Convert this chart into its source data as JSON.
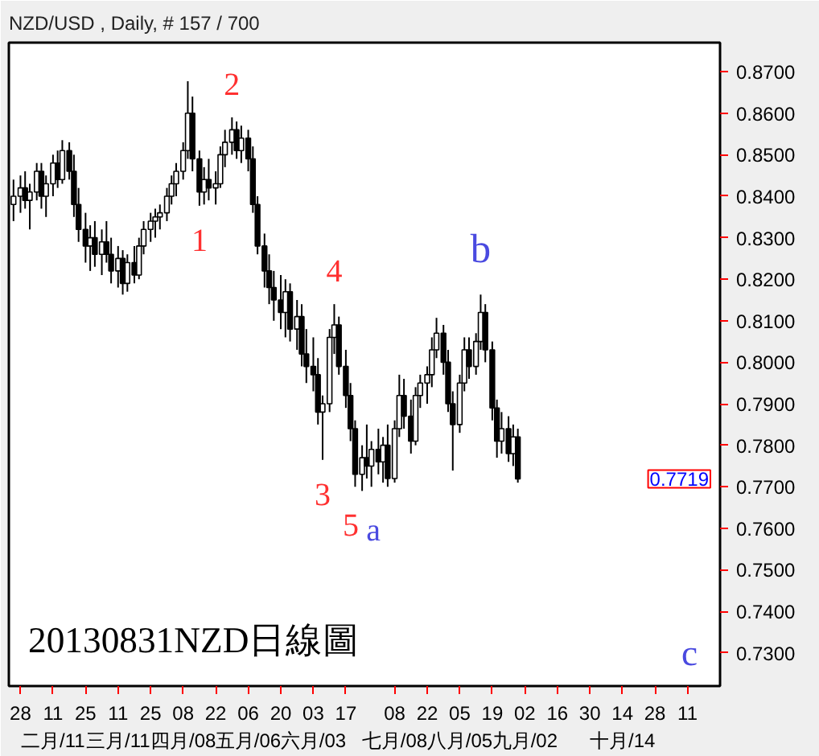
{
  "chart_data": {
    "type": "candlestick",
    "title": "NZD/USD , Daily, # 157 / 700",
    "color": "#000000",
    "x": [
      "2013-01-25",
      "2013-01-28",
      "2013-01-30",
      "2013-02-01",
      "2013-02-04",
      "2013-02-06",
      "2013-02-08",
      "2013-02-11",
      "2013-02-13",
      "2013-02-15",
      "2013-02-18",
      "2013-02-20",
      "2013-02-22",
      "2013-02-25",
      "2013-02-27",
      "2013-03-01",
      "2013-03-04",
      "2013-03-06",
      "2013-03-08",
      "2013-03-11",
      "2013-03-13",
      "2013-03-15",
      "2013-03-18",
      "2013-03-20",
      "2013-03-22",
      "2013-03-25",
      "2013-03-27",
      "2013-03-29",
      "2013-04-01",
      "2013-04-03",
      "2013-04-05",
      "2013-04-08",
      "2013-04-10",
      "2013-04-12",
      "2013-04-15",
      "2013-04-17",
      "2013-04-19",
      "2013-04-22",
      "2013-04-24",
      "2013-04-26",
      "2013-04-29",
      "2013-05-01",
      "2013-05-03",
      "2013-05-06",
      "2013-05-08",
      "2013-05-10",
      "2013-05-13",
      "2013-05-15",
      "2013-05-17",
      "2013-05-20",
      "2013-05-22",
      "2013-05-24",
      "2013-05-27",
      "2013-05-29",
      "2013-05-31",
      "2013-06-03",
      "2013-06-05",
      "2013-06-07",
      "2013-06-10",
      "2013-06-12",
      "2013-06-14",
      "2013-06-17",
      "2013-06-19",
      "2013-06-21",
      "2013-06-24",
      "2013-06-26",
      "2013-06-28",
      "2013-07-01",
      "2013-07-03",
      "2013-07-05",
      "2013-07-08",
      "2013-07-10",
      "2013-07-12",
      "2013-07-15",
      "2013-07-17",
      "2013-07-19",
      "2013-07-22",
      "2013-07-24",
      "2013-07-26",
      "2013-07-29",
      "2013-07-31",
      "2013-08-02",
      "2013-08-05",
      "2013-08-07",
      "2013-08-09",
      "2013-08-12",
      "2013-08-14",
      "2013-08-16",
      "2013-08-19",
      "2013-08-21",
      "2013-08-23",
      "2013-08-26",
      "2013-08-28",
      "2013-08-30"
    ],
    "ohlc": [
      [
        0.838,
        0.844,
        0.834,
        0.84
      ],
      [
        0.84,
        0.845,
        0.836,
        0.842
      ],
      [
        0.842,
        0.846,
        0.837,
        0.839
      ],
      [
        0.839,
        0.843,
        0.832,
        0.841
      ],
      [
        0.841,
        0.848,
        0.839,
        0.846
      ],
      [
        0.846,
        0.848,
        0.837,
        0.84
      ],
      [
        0.84,
        0.845,
        0.835,
        0.843
      ],
      [
        0.843,
        0.85,
        0.84,
        0.848
      ],
      [
        0.848,
        0.851,
        0.842,
        0.844
      ],
      [
        0.844,
        0.8535,
        0.843,
        0.851
      ],
      [
        0.851,
        0.853,
        0.844,
        0.846
      ],
      [
        0.846,
        0.85,
        0.835,
        0.838
      ],
      [
        0.838,
        0.842,
        0.829,
        0.832
      ],
      [
        0.832,
        0.836,
        0.824,
        0.828
      ],
      [
        0.828,
        0.833,
        0.822,
        0.83
      ],
      [
        0.83,
        0.834,
        0.823,
        0.826
      ],
      [
        0.826,
        0.832,
        0.821,
        0.829
      ],
      [
        0.829,
        0.834,
        0.824,
        0.826
      ],
      [
        0.826,
        0.83,
        0.819,
        0.822
      ],
      [
        0.822,
        0.828,
        0.818,
        0.825
      ],
      [
        0.825,
        0.827,
        0.8163,
        0.819
      ],
      [
        0.819,
        0.826,
        0.817,
        0.824
      ],
      [
        0.824,
        0.828,
        0.819,
        0.821
      ],
      [
        0.821,
        0.83,
        0.82,
        0.828
      ],
      [
        0.828,
        0.834,
        0.826,
        0.832
      ],
      [
        0.832,
        0.836,
        0.829,
        0.834
      ],
      [
        0.834,
        0.837,
        0.83,
        0.835
      ],
      [
        0.835,
        0.838,
        0.832,
        0.836
      ],
      [
        0.836,
        0.842,
        0.834,
        0.84
      ],
      [
        0.84,
        0.845,
        0.838,
        0.843
      ],
      [
        0.843,
        0.848,
        0.84,
        0.846
      ],
      [
        0.846,
        0.853,
        0.844,
        0.851
      ],
      [
        0.851,
        0.8677,
        0.849,
        0.86
      ],
      [
        0.86,
        0.864,
        0.846,
        0.849
      ],
      [
        0.849,
        0.851,
        0.8377,
        0.841
      ],
      [
        0.841,
        0.847,
        0.838,
        0.844
      ],
      [
        0.844,
        0.849,
        0.839,
        0.842
      ],
      [
        0.842,
        0.846,
        0.838,
        0.843
      ],
      [
        0.843,
        0.852,
        0.842,
        0.85
      ],
      [
        0.85,
        0.856,
        0.847,
        0.853
      ],
      [
        0.853,
        0.859,
        0.85,
        0.856
      ],
      [
        0.856,
        0.858,
        0.849,
        0.851
      ],
      [
        0.851,
        0.857,
        0.848,
        0.854
      ],
      [
        0.854,
        0.856,
        0.846,
        0.849
      ],
      [
        0.849,
        0.852,
        0.836,
        0.838
      ],
      [
        0.838,
        0.84,
        0.826,
        0.828
      ],
      [
        0.828,
        0.831,
        0.818,
        0.822
      ],
      [
        0.822,
        0.826,
        0.814,
        0.818
      ],
      [
        0.818,
        0.822,
        0.81,
        0.815
      ],
      [
        0.815,
        0.821,
        0.808,
        0.812
      ],
      [
        0.812,
        0.82,
        0.806,
        0.817
      ],
      [
        0.817,
        0.819,
        0.805,
        0.808
      ],
      [
        0.808,
        0.815,
        0.803,
        0.811
      ],
      [
        0.811,
        0.814,
        0.799,
        0.802
      ],
      [
        0.802,
        0.808,
        0.795,
        0.799
      ],
      [
        0.799,
        0.806,
        0.793,
        0.797
      ],
      [
        0.797,
        0.801,
        0.785,
        0.788
      ],
      [
        0.788,
        0.792,
        0.7765,
        0.79
      ],
      [
        0.79,
        0.808,
        0.788,
        0.806
      ],
      [
        0.806,
        0.814,
        0.802,
        0.809
      ],
      [
        0.809,
        0.811,
        0.797,
        0.799
      ],
      [
        0.799,
        0.803,
        0.789,
        0.792
      ],
      [
        0.792,
        0.795,
        0.781,
        0.784
      ],
      [
        0.784,
        0.786,
        0.77,
        0.773
      ],
      [
        0.773,
        0.78,
        0.769,
        0.777
      ],
      [
        0.777,
        0.785,
        0.772,
        0.775
      ],
      [
        0.775,
        0.781,
        0.77,
        0.779
      ],
      [
        0.779,
        0.784,
        0.773,
        0.776
      ],
      [
        0.776,
        0.782,
        0.771,
        0.78
      ],
      [
        0.78,
        0.785,
        0.77,
        0.772
      ],
      [
        0.772,
        0.786,
        0.771,
        0.784
      ],
      [
        0.784,
        0.797,
        0.782,
        0.792
      ],
      [
        0.792,
        0.796,
        0.784,
        0.787
      ],
      [
        0.787,
        0.791,
        0.778,
        0.781
      ],
      [
        0.781,
        0.794,
        0.78,
        0.792
      ],
      [
        0.792,
        0.797,
        0.789,
        0.795
      ],
      [
        0.795,
        0.799,
        0.79,
        0.797
      ],
      [
        0.797,
        0.806,
        0.794,
        0.803
      ],
      [
        0.803,
        0.8107,
        0.801,
        0.807
      ],
      [
        0.807,
        0.809,
        0.797,
        0.8
      ],
      [
        0.8,
        0.803,
        0.788,
        0.79
      ],
      [
        0.79,
        0.793,
        0.7739,
        0.785
      ],
      [
        0.785,
        0.797,
        0.783,
        0.795
      ],
      [
        0.795,
        0.806,
        0.793,
        0.803
      ],
      [
        0.803,
        0.806,
        0.796,
        0.799
      ],
      [
        0.799,
        0.807,
        0.797,
        0.805
      ],
      [
        0.805,
        0.8163,
        0.803,
        0.812
      ],
      [
        0.812,
        0.814,
        0.8,
        0.803
      ],
      [
        0.803,
        0.805,
        0.786,
        0.789
      ],
      [
        0.789,
        0.791,
        0.777,
        0.781
      ],
      [
        0.781,
        0.788,
        0.778,
        0.784
      ],
      [
        0.784,
        0.787,
        0.776,
        0.778
      ],
      [
        0.778,
        0.785,
        0.775,
        0.782
      ],
      [
        0.782,
        0.784,
        0.771,
        0.7719
      ]
    ],
    "xlim": [
      "2013-01-23",
      "2013-11-25"
    ],
    "xticks": [
      {
        "value": "2013-01-28",
        "label": "28"
      },
      {
        "value": "2013-02-11",
        "label": "11\n二月/11"
      },
      {
        "value": "2013-02-25",
        "label": "25"
      },
      {
        "value": "2013-03-11",
        "label": "11\n三月/11"
      },
      {
        "value": "2013-03-25",
        "label": "25"
      },
      {
        "value": "2013-04-08",
        "label": "08\n四月/08"
      },
      {
        "value": "2013-04-22",
        "label": "22"
      },
      {
        "value": "2013-05-06",
        "label": "06\n五月/06"
      },
      {
        "value": "2013-05-20",
        "label": "20"
      },
      {
        "value": "2013-06-03",
        "label": "03\n六月/03"
      },
      {
        "value": "2013-06-17",
        "label": "17"
      },
      {
        "value": "2013-07-08",
        "label": "08\n七月/08"
      },
      {
        "value": "2013-07-22",
        "label": "22"
      },
      {
        "value": "2013-08-05",
        "label": "05\n八月/05"
      },
      {
        "value": "2013-08-19",
        "label": "19"
      },
      {
        "value": "2013-09-02",
        "label": "02\n九月/02"
      },
      {
        "value": "2013-09-16",
        "label": "16"
      },
      {
        "value": "2013-09-30",
        "label": "30"
      },
      {
        "value": "2013-10-14",
        "label": "14\n十月/14"
      },
      {
        "value": "2013-10-28",
        "label": "28"
      },
      {
        "value": "2013-11-11",
        "label": "11"
      }
    ],
    "ylim": [
      0.722,
      0.877
    ],
    "yticks": [
      {
        "value": 0.73,
        "label": "0.7300"
      },
      {
        "value": 0.74,
        "label": "0.7400"
      },
      {
        "value": 0.75,
        "label": "0.7500"
      },
      {
        "value": 0.76,
        "label": "0.7600"
      },
      {
        "value": 0.77,
        "label": "0.7700"
      },
      {
        "value": 0.78,
        "label": "0.7800"
      },
      {
        "value": 0.79,
        "label": "0.7900"
      },
      {
        "value": 0.8,
        "label": "0.8000"
      },
      {
        "value": 0.81,
        "label": "0.8100"
      },
      {
        "value": 0.82,
        "label": "0.8200"
      },
      {
        "value": 0.83,
        "label": "0.8300"
      },
      {
        "value": 0.84,
        "label": "0.8400"
      },
      {
        "value": 0.85,
        "label": "0.8500"
      },
      {
        "value": 0.86,
        "label": "0.8600"
      },
      {
        "value": 0.87,
        "label": "0.8700"
      }
    ],
    "annotations": [
      {
        "text": "1",
        "x": "2013-04-15",
        "y": 0.8377
      },
      {
        "text": "2",
        "x": "2013-04-29",
        "y": 0.859
      },
      {
        "text": "3",
        "x": "2013-06-07",
        "y": 0.7765
      },
      {
        "text": "4",
        "x": "2013-06-12",
        "y": 0.814
      },
      {
        "text": "5",
        "x": "2013-06-24",
        "y": 0.769
      },
      {
        "text": "a",
        "x": "2013-06-24",
        "y": 0.769
      },
      {
        "text": "b",
        "x": "2013-08-14",
        "y": 0.8163
      },
      "c",
      "20130831NZD日線圖",
      "0.7719"
    ],
    "grid": false
  }
}
